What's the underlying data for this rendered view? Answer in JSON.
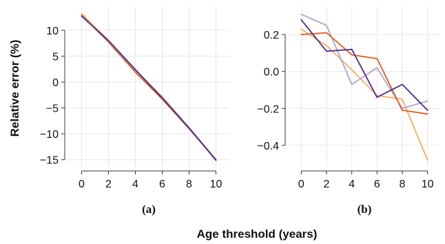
{
  "colors": {
    "dark_purple": "#4a2a8c",
    "red_orange": "#e05a1e",
    "light_orange": "#f6ad5c",
    "lavender": "#ada3cf",
    "grid": "#e6e6e6",
    "axis": "#333333"
  },
  "figure": {
    "xlabel": "Age threshold (years)",
    "ylabel": "Relative error (%)"
  },
  "chart_data": [
    {
      "type": "line",
      "panel_label": "(a)",
      "x": [
        0,
        2,
        4,
        6,
        8,
        10
      ],
      "xlim": [
        -1,
        11
      ],
      "ylim": [
        -16.5,
        14.5
      ],
      "xticks": [
        0,
        2,
        4,
        6,
        8,
        10
      ],
      "yticks": [
        -15,
        -10,
        -5,
        0,
        5,
        10
      ],
      "ytick_labels": [
        "−15",
        "−10",
        "−5",
        "0",
        "5",
        "10"
      ],
      "grid": true,
      "series": [
        {
          "color": "#f6ad5c",
          "values": [
            13.2,
            8.0,
            2.2,
            -2.8,
            -8.8,
            -14.9
          ]
        },
        {
          "color": "#e05a1e",
          "values": [
            12.9,
            7.7,
            1.9,
            -3.3,
            -9.0,
            -15.0
          ]
        },
        {
          "color": "#ada3cf",
          "values": [
            12.8,
            7.9,
            2.3,
            -3.0,
            -8.8,
            -15.0
          ]
        },
        {
          "color": "#4a2a8c",
          "values": [
            12.7,
            8.0,
            2.4,
            -3.1,
            -8.9,
            -15.1
          ]
        }
      ]
    },
    {
      "type": "line",
      "panel_label": "(b)",
      "x": [
        0,
        2,
        4,
        6,
        8,
        10
      ],
      "xlim": [
        -1,
        11
      ],
      "ylim": [
        -0.52,
        0.35
      ],
      "xticks": [
        0,
        2,
        4,
        6,
        8,
        10
      ],
      "yticks": [
        -0.4,
        -0.2,
        0.0,
        0.2
      ],
      "ytick_labels": [
        "−0.4",
        "−0.2",
        "0.0",
        "0.2"
      ],
      "grid": true,
      "series": [
        {
          "color": "#f6ad5c",
          "values": [
            0.23,
            0.14,
            0.01,
            -0.13,
            -0.15,
            -0.48
          ]
        },
        {
          "color": "#ada3cf",
          "values": [
            0.31,
            0.25,
            -0.07,
            0.02,
            -0.2,
            -0.16
          ]
        },
        {
          "color": "#e05a1e",
          "values": [
            0.2,
            0.21,
            0.09,
            0.07,
            -0.21,
            -0.23
          ]
        },
        {
          "color": "#4a2a8c",
          "values": [
            0.28,
            0.11,
            0.12,
            -0.14,
            -0.07,
            -0.21
          ]
        }
      ]
    }
  ]
}
